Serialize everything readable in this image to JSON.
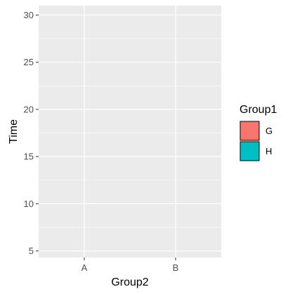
{
  "chart_data": {
    "type": "bar",
    "xlabel": "Group2",
    "ylabel": "Time",
    "categories": [
      "A",
      "B"
    ],
    "ylim": [
      4.3,
      31.0
    ],
    "yticks": [
      5,
      10,
      15,
      20,
      25,
      30
    ],
    "grid": true,
    "legend": {
      "title": "Group1",
      "placement": "right",
      "entries": [
        {
          "label": "G",
          "color": "#f8766d"
        },
        {
          "label": "H",
          "color": "#00bfc4"
        }
      ]
    },
    "series": []
  },
  "colors": {
    "panel_background": "#ebebeb",
    "grid_major": "#ffffff",
    "tick_color": "#333333"
  }
}
